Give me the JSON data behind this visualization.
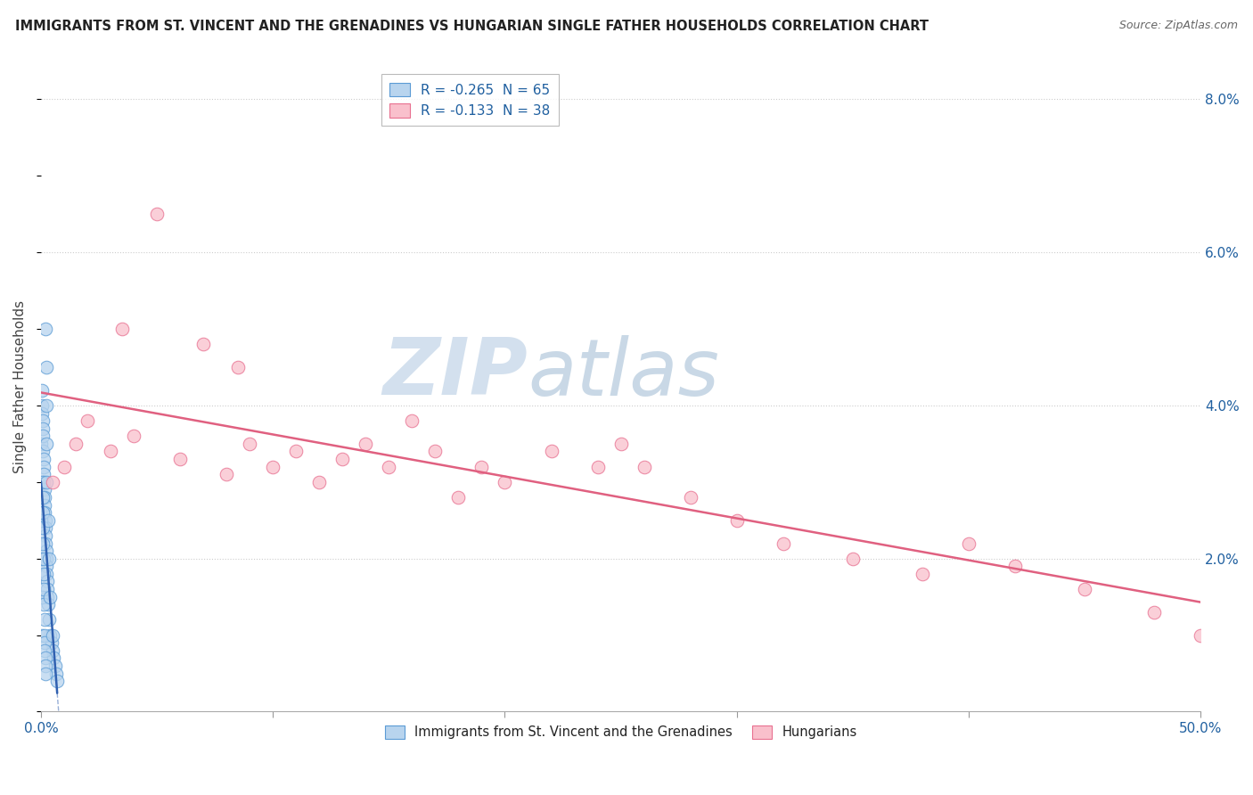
{
  "title": "IMMIGRANTS FROM ST. VINCENT AND THE GRENADINES VS HUNGARIAN SINGLE FATHER HOUSEHOLDS CORRELATION CHART",
  "source": "Source: ZipAtlas.com",
  "ylabel": "Single Father Households",
  "xlim": [
    0.0,
    50.0
  ],
  "ylim": [
    0.0,
    8.5
  ],
  "yticks_right": [
    0.0,
    2.0,
    4.0,
    6.0,
    8.0
  ],
  "ytick_labels_right": [
    "",
    "2.0%",
    "4.0%",
    "6.0%",
    "8.0%"
  ],
  "legend_r1": "R = -0.265  N = 65",
  "legend_r2": "R = -0.133  N = 38",
  "blue_fill": "#b8d4ee",
  "blue_edge": "#5b9bd5",
  "pink_fill": "#f9c0cc",
  "pink_edge": "#e87090",
  "blue_line_color": "#3060b0",
  "pink_line_color": "#e06080",
  "watermark_zip": "ZIP",
  "watermark_atlas": "atlas",
  "blue_scatter_x": [
    0.02,
    0.03,
    0.04,
    0.05,
    0.06,
    0.07,
    0.08,
    0.09,
    0.1,
    0.11,
    0.12,
    0.13,
    0.14,
    0.15,
    0.16,
    0.17,
    0.18,
    0.19,
    0.2,
    0.21,
    0.22,
    0.23,
    0.24,
    0.25,
    0.26,
    0.27,
    0.28,
    0.3,
    0.35,
    0.4,
    0.45,
    0.5,
    0.55,
    0.6,
    0.65,
    0.7,
    0.01,
    0.02,
    0.03,
    0.04,
    0.05,
    0.06,
    0.07,
    0.08,
    0.09,
    0.1,
    0.11,
    0.12,
    0.13,
    0.14,
    0.15,
    0.16,
    0.17,
    0.18,
    0.19,
    0.2,
    0.21,
    0.22,
    0.23,
    0.24,
    0.25,
    0.3,
    0.35,
    0.4,
    0.5
  ],
  "blue_scatter_y": [
    3.5,
    4.0,
    4.2,
    3.9,
    3.8,
    3.7,
    3.6,
    3.4,
    3.3,
    3.2,
    3.1,
    3.0,
    2.9,
    2.8,
    2.7,
    2.6,
    2.5,
    2.4,
    2.3,
    2.2,
    2.1,
    2.0,
    1.9,
    1.8,
    1.7,
    1.6,
    1.5,
    1.4,
    1.2,
    1.0,
    0.9,
    0.8,
    0.7,
    0.6,
    0.5,
    0.4,
    2.5,
    2.0,
    1.5,
    1.0,
    3.0,
    2.8,
    2.6,
    2.4,
    2.2,
    2.0,
    1.8,
    1.6,
    1.4,
    1.2,
    1.0,
    0.9,
    0.8,
    0.7,
    0.6,
    0.5,
    5.0,
    4.5,
    4.0,
    3.5,
    3.0,
    2.5,
    2.0,
    1.5,
    1.0
  ],
  "pink_scatter_x": [
    0.5,
    1.0,
    1.5,
    2.0,
    3.0,
    4.0,
    5.0,
    6.0,
    7.0,
    8.0,
    9.0,
    10.0,
    11.0,
    12.0,
    13.0,
    14.0,
    15.0,
    16.0,
    17.0,
    18.0,
    19.0,
    20.0,
    22.0,
    24.0,
    25.0,
    26.0,
    28.0,
    30.0,
    32.0,
    35.0,
    38.0,
    40.0,
    42.0,
    45.0,
    48.0,
    50.0,
    3.5,
    8.5
  ],
  "pink_scatter_y": [
    3.0,
    3.2,
    3.5,
    3.8,
    3.4,
    3.6,
    6.5,
    3.3,
    4.8,
    3.1,
    3.5,
    3.2,
    3.4,
    3.0,
    3.3,
    3.5,
    3.2,
    3.8,
    3.4,
    2.8,
    3.2,
    3.0,
    3.4,
    3.2,
    3.5,
    3.2,
    2.8,
    2.5,
    2.2,
    2.0,
    1.8,
    2.2,
    1.9,
    1.6,
    1.3,
    1.0,
    5.0,
    4.5
  ]
}
